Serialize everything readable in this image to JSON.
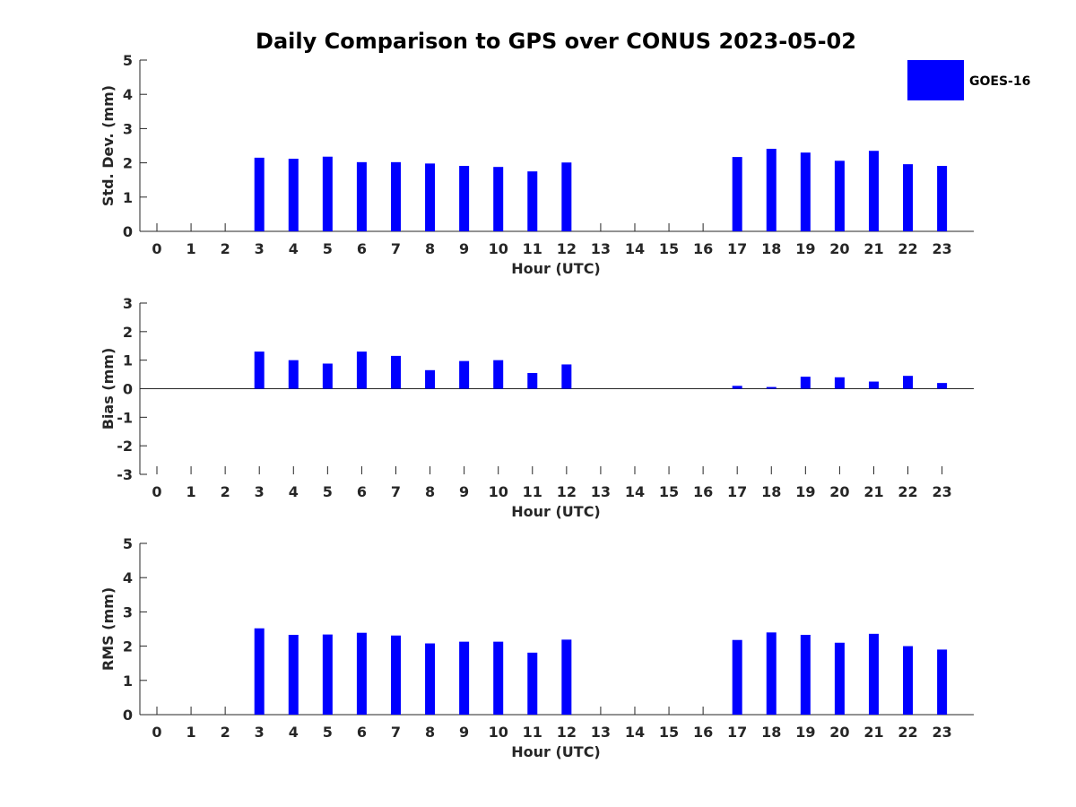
{
  "title": "Daily Comparison to GPS over CONUS 2023-05-02",
  "legend": {
    "label": "GOES-16",
    "color": "#0000ff",
    "placement": "top-right"
  },
  "chart_data": [
    {
      "type": "bar",
      "name": "std_dev",
      "ylabel": "Std. Dev. (mm)",
      "xlabel": "Hour (UTC)",
      "ylim": [
        0,
        5
      ],
      "yticks": [
        0,
        1,
        2,
        3,
        4,
        5
      ],
      "categories": [
        "0",
        "1",
        "2",
        "3",
        "4",
        "5",
        "6",
        "7",
        "8",
        "9",
        "10",
        "11",
        "12",
        "13",
        "14",
        "15",
        "16",
        "17",
        "18",
        "19",
        "20",
        "21",
        "22",
        "23"
      ],
      "series": [
        {
          "name": "GOES-16",
          "values": [
            null,
            null,
            null,
            2.15,
            2.12,
            2.18,
            2.02,
            2.02,
            1.98,
            1.91,
            1.88,
            1.75,
            2.01,
            null,
            null,
            null,
            null,
            2.17,
            2.41,
            2.3,
            2.06,
            2.35,
            1.96,
            1.91
          ]
        }
      ]
    },
    {
      "type": "bar",
      "name": "bias",
      "ylabel": "Bias (mm)",
      "xlabel": "Hour (UTC)",
      "ylim": [
        -3,
        3
      ],
      "yticks": [
        -3,
        -2,
        -1,
        0,
        1,
        2,
        3
      ],
      "categories": [
        "0",
        "1",
        "2",
        "3",
        "4",
        "5",
        "6",
        "7",
        "8",
        "9",
        "10",
        "11",
        "12",
        "13",
        "14",
        "15",
        "16",
        "17",
        "18",
        "19",
        "20",
        "21",
        "22",
        "23"
      ],
      "series": [
        {
          "name": "GOES-16",
          "values": [
            null,
            null,
            null,
            1.3,
            1.0,
            0.88,
            1.3,
            1.15,
            0.65,
            0.97,
            1.0,
            0.55,
            0.85,
            null,
            null,
            null,
            null,
            0.1,
            0.06,
            0.42,
            0.4,
            0.25,
            0.45,
            0.2
          ]
        }
      ]
    },
    {
      "type": "bar",
      "name": "rms",
      "ylabel": "RMS (mm)",
      "xlabel": "Hour (UTC)",
      "ylim": [
        0,
        5
      ],
      "yticks": [
        0,
        1,
        2,
        3,
        4,
        5
      ],
      "categories": [
        "0",
        "1",
        "2",
        "3",
        "4",
        "5",
        "6",
        "7",
        "8",
        "9",
        "10",
        "11",
        "12",
        "13",
        "14",
        "15",
        "16",
        "17",
        "18",
        "19",
        "20",
        "21",
        "22",
        "23"
      ],
      "series": [
        {
          "name": "GOES-16",
          "values": [
            null,
            null,
            null,
            2.52,
            2.33,
            2.34,
            2.39,
            2.31,
            2.08,
            2.13,
            2.13,
            1.81,
            2.19,
            null,
            null,
            null,
            null,
            2.18,
            2.4,
            2.33,
            2.1,
            2.36,
            2.0,
            1.9
          ]
        }
      ]
    }
  ]
}
